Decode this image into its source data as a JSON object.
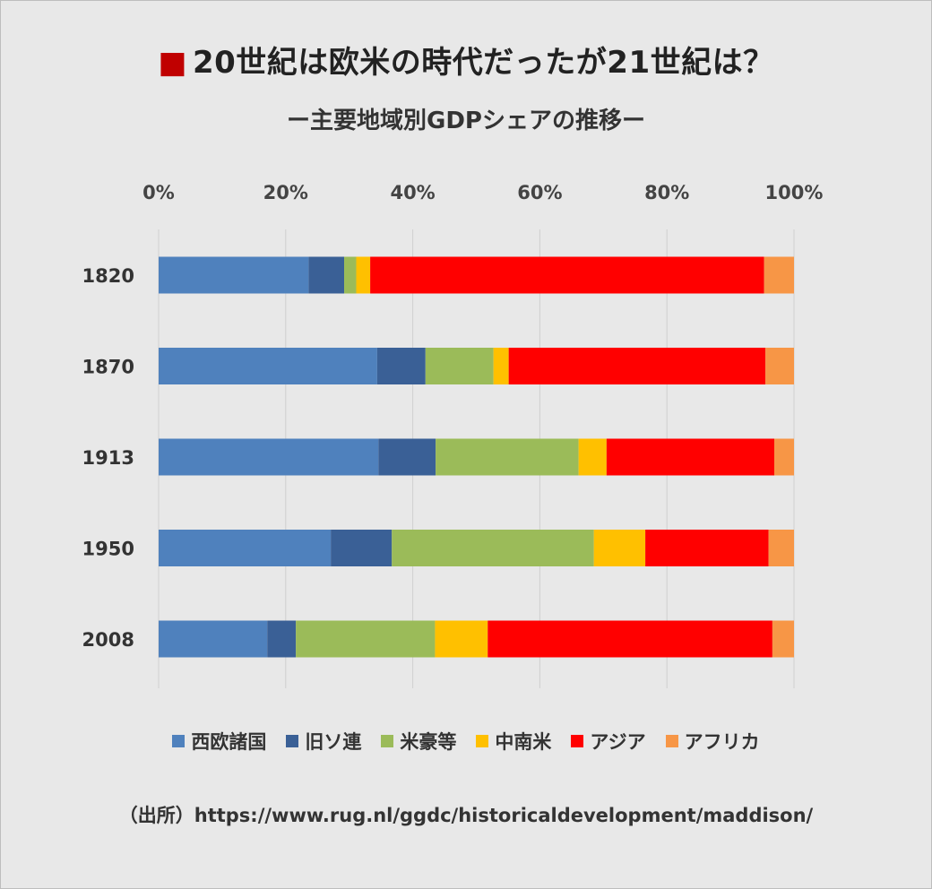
{
  "header": {
    "marker": "■",
    "title": "20世紀は欧米の時代だったが21世紀は？",
    "subtitle": "ー主要地域別GDPシェアの推移ー"
  },
  "footer": {
    "source": "（出所）https://www.rug.nl/ggdc/historicaldevelopment/maddison/"
  },
  "colors": {
    "background": "#e8e8e8",
    "title_marker": "#c00000"
  },
  "chart_data": {
    "type": "bar",
    "orientation": "horizontal",
    "stacked": true,
    "categories": [
      "1820",
      "1870",
      "1913",
      "1950",
      "2008"
    ],
    "xlim": [
      0,
      100
    ],
    "xticks": [
      "0%",
      "20%",
      "40%",
      "60%",
      "80%",
      "100%"
    ],
    "grid": "vertical",
    "legend_position": "bottom",
    "series": [
      {
        "name": "西欧諸国",
        "color": "#4f81bd",
        "values": [
          23.6,
          34.4,
          34.6,
          27.1,
          17.1
        ]
      },
      {
        "name": "旧ソ連",
        "color": "#3a6096",
        "values": [
          5.6,
          7.6,
          9.0,
          9.6,
          4.5
        ]
      },
      {
        "name": "米豪等",
        "color": "#9bbb59",
        "values": [
          1.9,
          10.7,
          22.5,
          31.8,
          21.9
        ]
      },
      {
        "name": "中南米",
        "color": "#ffc000",
        "values": [
          2.2,
          2.4,
          4.4,
          8.1,
          8.3
        ]
      },
      {
        "name": "アジア",
        "color": "#ff0000",
        "values": [
          62.0,
          40.4,
          26.4,
          19.4,
          44.8
        ]
      },
      {
        "name": "アフリカ",
        "color": "#f79646",
        "values": [
          4.7,
          4.5,
          3.1,
          4.0,
          3.4
        ]
      }
    ]
  }
}
